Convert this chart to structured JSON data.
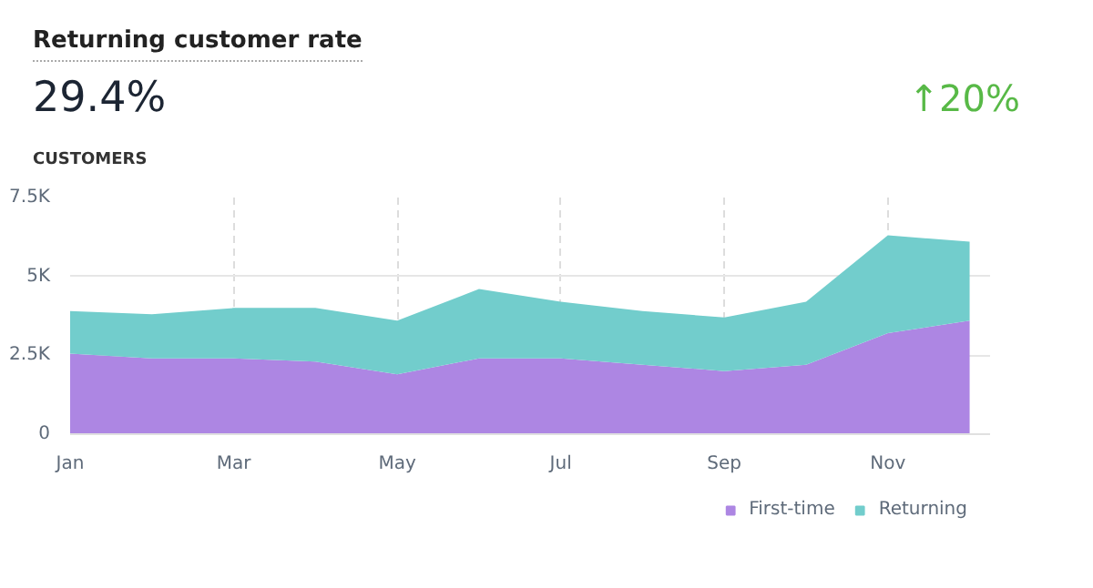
{
  "chart_data": {
    "type": "area",
    "title": "Returning customer rate",
    "subtitle": "29.4%",
    "annotations": [
      "↑20%"
    ],
    "ylabel": "CUSTOMERS",
    "categories": [
      "Jan",
      null,
      "Mar",
      null,
      "May",
      null,
      "Jul",
      null,
      "Sep",
      null,
      "Nov",
      null
    ],
    "stacked": true,
    "series": [
      {
        "name": "First-time",
        "color": "#ad86e3",
        "values": [
          2550,
          2400,
          2400,
          2300,
          1900,
          2400,
          2400,
          2200,
          2000,
          2200,
          3200,
          3600
        ]
      },
      {
        "name": "Returning",
        "color": "#72cdcc",
        "values": [
          1350,
          1400,
          1600,
          1700,
          1700,
          2200,
          1800,
          1700,
          1700,
          2000,
          3100,
          2500
        ]
      }
    ],
    "ylim": [
      0,
      7500
    ],
    "yticks": [
      0,
      {
        "value": 2500,
        "label": "2.5K"
      },
      {
        "value": 5000,
        "label": "5K"
      },
      {
        "value": 7500,
        "label": "7.5K"
      }
    ],
    "grid": true,
    "legend": "bottom right"
  }
}
